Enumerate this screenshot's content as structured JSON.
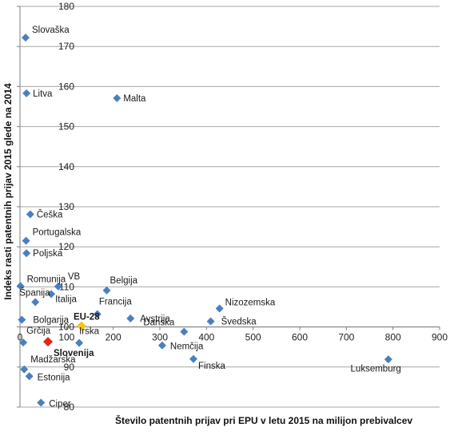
{
  "chart_data": {
    "type": "scatter",
    "xlabel": "Število patentnih prijav pri EPU v letu 2015 na milijon prebivalcev",
    "ylabel": "Indeks rasti patentnih prijav 2015 glede na 2014",
    "xlim": [
      0,
      900
    ],
    "ylim": [
      80,
      180
    ],
    "x_ticks": [
      "0",
      "100",
      "200",
      "300",
      "400",
      "500",
      "600",
      "700",
      "800",
      "900"
    ],
    "y_ticks": [
      "80",
      "90",
      "100",
      "110",
      "120",
      "130",
      "140",
      "150",
      "160",
      "170",
      "180"
    ],
    "grid": "horizontal",
    "colors": {
      "default": "#4a7fc1",
      "eu28": "#f5c518",
      "slovenija": "#e3241b"
    },
    "points": [
      {
        "label": "Slovaška",
        "x": 12,
        "y": 172.2,
        "style": "default"
      },
      {
        "label": "Litva",
        "x": 14,
        "y": 158.3,
        "style": "default"
      },
      {
        "label": "Malta",
        "x": 208,
        "y": 157.1,
        "style": "default"
      },
      {
        "label": "Češka",
        "x": 22,
        "y": 128.1,
        "style": "default"
      },
      {
        "label": "Portugalska",
        "x": 13,
        "y": 121.5,
        "style": "default"
      },
      {
        "label": "Poljska",
        "x": 14,
        "y": 118.4,
        "style": "default"
      },
      {
        "label": "Romunija",
        "x": 1,
        "y": 110.2,
        "style": "default"
      },
      {
        "label": "VB",
        "x": 82,
        "y": 110.1,
        "style": "default"
      },
      {
        "label": "Belgija",
        "x": 186,
        "y": 109.1,
        "style": "default"
      },
      {
        "label": "Španija",
        "x": 33,
        "y": 106.2,
        "style": "default"
      },
      {
        "label": "Italija",
        "x": 67,
        "y": 108.2,
        "style": "default"
      },
      {
        "label": "Francija",
        "x": 166,
        "y": 103.2,
        "style": "default"
      },
      {
        "label": "Nizozemska",
        "x": 428,
        "y": 104.6,
        "style": "default"
      },
      {
        "label": "EU-28",
        "x": 132,
        "y": 100.2,
        "style": "eu28"
      },
      {
        "label": "Avstrija",
        "x": 237,
        "y": 102.1,
        "style": "default"
      },
      {
        "label": "Bolgarija",
        "x": 4,
        "y": 101.8,
        "style": "default"
      },
      {
        "label": "Švedska",
        "x": 409,
        "y": 101.4,
        "style": "default"
      },
      {
        "label": "Danska",
        "x": 352,
        "y": 98.8,
        "style": "default"
      },
      {
        "label": "Irska",
        "x": 127,
        "y": 96.0,
        "style": "default"
      },
      {
        "label": "Grčija",
        "x": 7,
        "y": 96.1,
        "style": "default"
      },
      {
        "label": "Slovenija",
        "x": 60,
        "y": 96.3,
        "style": "slovenija"
      },
      {
        "label": "Nemčija",
        "x": 305,
        "y": 95.4,
        "style": "default"
      },
      {
        "label": "Finska",
        "x": 372,
        "y": 92.0,
        "style": "default"
      },
      {
        "label": "Luksemburg",
        "x": 790,
        "y": 91.9,
        "style": "default"
      },
      {
        "label": "Madžarska",
        "x": 9,
        "y": 89.4,
        "style": "default"
      },
      {
        "label": "Estonija",
        "x": 20,
        "y": 87.7,
        "style": "default"
      },
      {
        "label": "Ciper",
        "x": 45,
        "y": 81.1,
        "style": "default"
      }
    ]
  }
}
